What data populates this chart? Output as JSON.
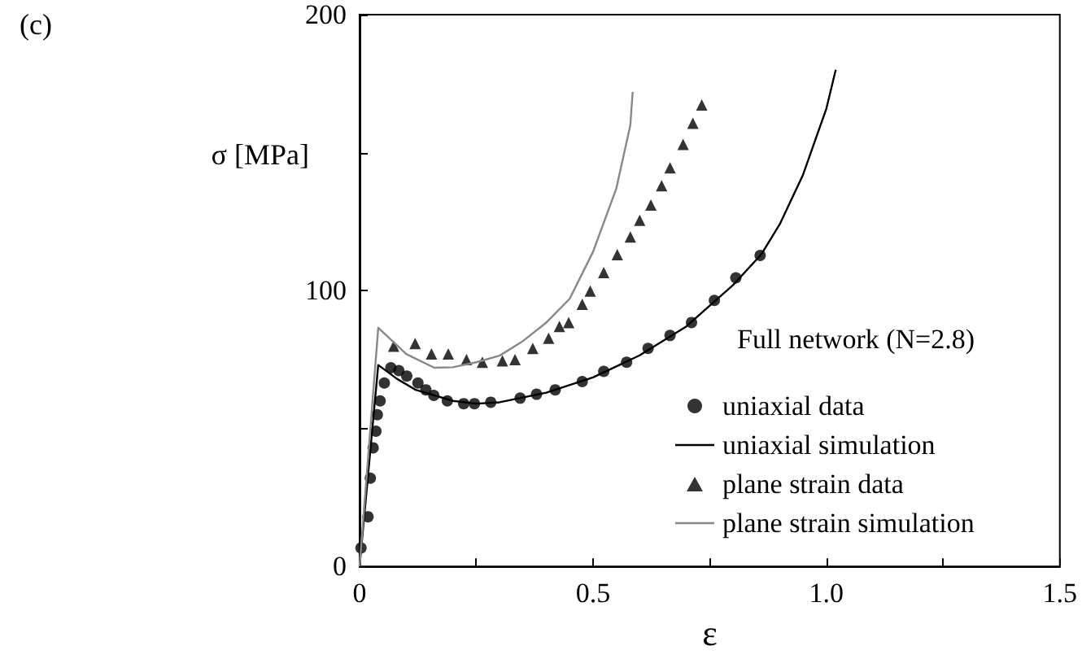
{
  "chart_data": {
    "type": "scatter",
    "xlabel": "ε",
    "ylabel": "σ [MPa]",
    "legend_title": "Full network (N=2.8)",
    "annotations": [
      "(c)"
    ],
    "xlim": [
      0,
      1.5
    ],
    "ylim": [
      0,
      200
    ],
    "xticks": [
      0,
      {
        "value": 0.25,
        "label": null
      },
      0.5,
      {
        "value": 0.75,
        "label": null
      },
      {
        "value": 1,
        "label": "1.0"
      },
      {
        "value": 1.25,
        "label": null
      },
      1.5
    ],
    "yticks": [
      0,
      {
        "value": 50,
        "label": null
      },
      100,
      {
        "value": 150,
        "label": null
      },
      200
    ],
    "grid": false,
    "legend": "right",
    "series": [
      {
        "name": "uniaxial data",
        "marker": "circle",
        "color": "#000000",
        "x": [
          0.003,
          0.018,
          0.023,
          0.029,
          0.035,
          0.038,
          0.044,
          0.053,
          0.067,
          0.084,
          0.101,
          0.125,
          0.142,
          0.159,
          0.188,
          0.223,
          0.246,
          0.281,
          0.344,
          0.379,
          0.419,
          0.477,
          0.523,
          0.572,
          0.618,
          0.665,
          0.711,
          0.76,
          0.806,
          0.858
        ],
        "values": [
          6.7,
          18,
          32,
          43,
          49,
          55,
          60,
          66.5,
          72,
          71,
          69,
          66.5,
          64,
          62,
          60,
          59,
          59,
          59.5,
          61,
          62.4,
          64,
          67,
          70.7,
          74,
          79,
          83.7,
          88.4,
          96.4,
          104.6,
          112.7
        ]
      },
      {
        "name": "uniaxial simulation",
        "type": "line",
        "marker": "none",
        "line_style": "solid",
        "color": "#000000",
        "x": [
          0,
          0.04,
          0.08,
          0.12,
          0.2,
          0.25,
          0.3,
          0.4,
          0.5,
          0.6,
          0.7,
          0.8,
          0.86,
          0.9,
          0.95,
          1.0,
          1.02
        ],
        "values": [
          0,
          73,
          68,
          64,
          60,
          59,
          59.5,
          63,
          68.5,
          76.5,
          87,
          102,
          113,
          124,
          142,
          166,
          180
        ]
      },
      {
        "name": "plane strain data",
        "marker": "triangle",
        "color": "#000000",
        "x": [
          0.073,
          0.119,
          0.154,
          0.19,
          0.229,
          0.263,
          0.306,
          0.333,
          0.371,
          0.405,
          0.428,
          0.448,
          0.477,
          0.494,
          0.523,
          0.552,
          0.58,
          0.6,
          0.624,
          0.647,
          0.665,
          0.693,
          0.714,
          0.733
        ],
        "values": [
          79.8,
          80.8,
          77,
          77,
          75,
          74,
          74.5,
          75,
          79,
          82.7,
          87,
          88.4,
          95,
          99.8,
          106.5,
          113,
          119.4,
          125.5,
          131,
          138,
          144.5,
          153,
          160.6,
          167.3
        ]
      },
      {
        "name": "plane strain simulation",
        "type": "line",
        "marker": "none",
        "line_style": "solid",
        "color": "#888888",
        "x": [
          0,
          0.04,
          0.1,
          0.16,
          0.2,
          0.25,
          0.3,
          0.35,
          0.4,
          0.45,
          0.5,
          0.55,
          0.58,
          0.585
        ],
        "values": [
          0,
          86.5,
          77,
          72,
          72.2,
          74,
          76.4,
          81.7,
          88.4,
          97,
          114,
          137,
          160,
          172
        ]
      }
    ]
  }
}
